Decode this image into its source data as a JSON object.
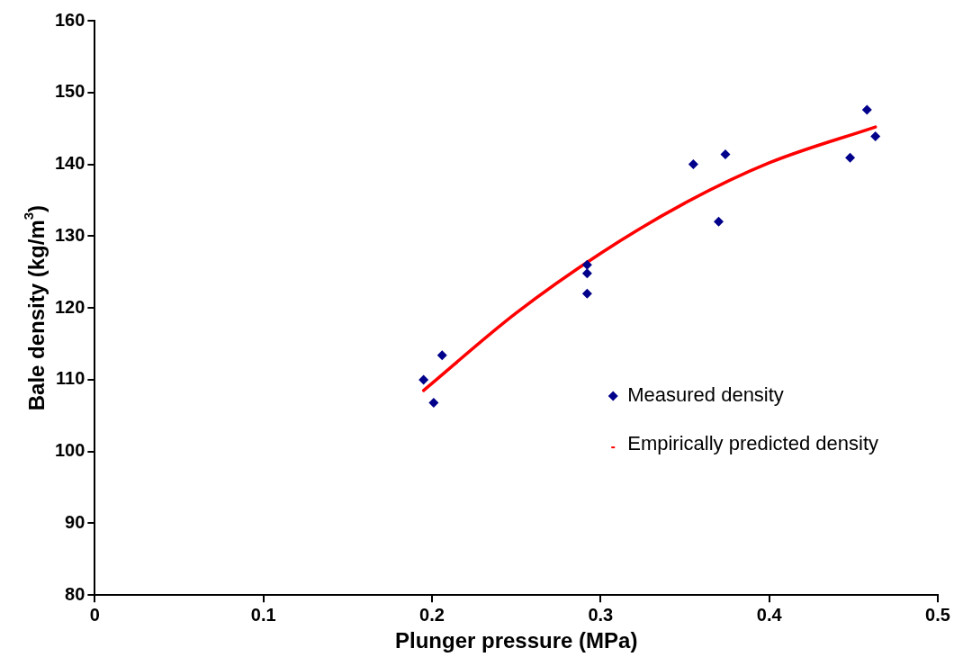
{
  "chart_data": {
    "type": "scatter",
    "xlabel": "Plunger pressure (MPa)",
    "ylabel": "Bale density (kg/m$^{3}$)",
    "xlim": [
      0,
      0.5
    ],
    "xticks": [
      0,
      0.1,
      0.2,
      0.3,
      0.4,
      0.5
    ],
    "ylim": [
      80,
      160
    ],
    "yticks": [
      80,
      90,
      100,
      110,
      120,
      130,
      140,
      150,
      160
    ],
    "grid": false,
    "legend": "right",
    "marker": "diamond",
    "series": [
      {
        "name": "Measured density",
        "color": "#00008b",
        "x": [
          0.195,
          0.201,
          0.206,
          0.292,
          0.292,
          0.292,
          0.355,
          0.37,
          0.374,
          0.448,
          0.458,
          0.463
        ],
        "values": [
          110.0,
          106.8,
          113.4,
          126.0,
          124.8,
          122.0,
          140.0,
          132.0,
          141.4,
          140.9,
          147.6,
          143.9
        ]
      },
      {
        "name": "Empirically predicted density",
        "type": "line",
        "marker": "none",
        "color": "#ff0000",
        "x": [
          0.195,
          0.25,
          0.3,
          0.35,
          0.4,
          0.463
        ],
        "values": [
          108.5,
          119.3,
          127.6,
          134.6,
          140.2,
          145.2
        ]
      }
    ]
  }
}
